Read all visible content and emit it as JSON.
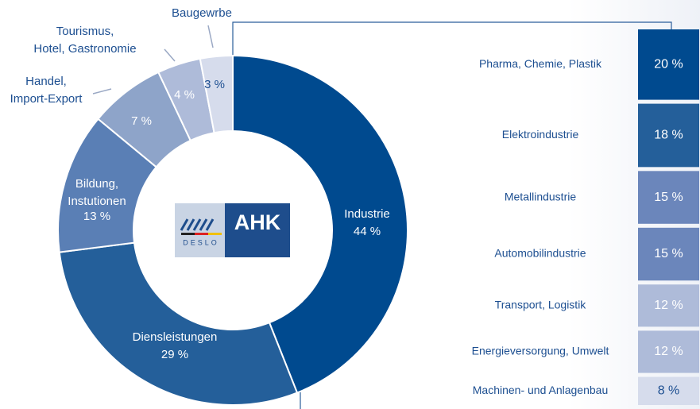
{
  "logo": {
    "text": "AHK",
    "subtext": "DESLO"
  },
  "chart_data": [
    {
      "type": "donut",
      "categories": [
        "Industrie",
        "Diensleistungen",
        "Bildung, Instutionen",
        "Handel, Import-Export",
        "Tourismus, Hotel, Gastronomie",
        "Baugewrbe"
      ],
      "values": [
        44,
        29,
        13,
        7,
        4,
        3
      ],
      "value_labels": [
        "44 %",
        "29 %",
        "13 %",
        "7 %",
        "4 %",
        "3 %"
      ],
      "colors": [
        "#004a8f",
        "#245f9a",
        "#5a7fb5",
        "#8ea4c9",
        "#aebbd9",
        "#d6dcec"
      ]
    },
    {
      "type": "bar",
      "categories": [
        "Pharma, Chemie, Plastik",
        "Elektroindustrie",
        "Metallindustrie",
        "Automobilindustrie",
        "Transport, Logistik",
        "Energieversorgung, Umwelt",
        "Machinen- und Anlagenbau"
      ],
      "values": [
        20,
        18,
        15,
        15,
        12,
        12,
        8
      ],
      "value_labels": [
        "20 %",
        "18 %",
        "15 %",
        "15 %",
        "12 %",
        "12 %",
        "8 %"
      ],
      "colors": [
        "#004a8f",
        "#245f9a",
        "#6b86bb",
        "#6b86bb",
        "#aebbd9",
        "#aebbd9",
        "#d6dcec"
      ]
    }
  ]
}
